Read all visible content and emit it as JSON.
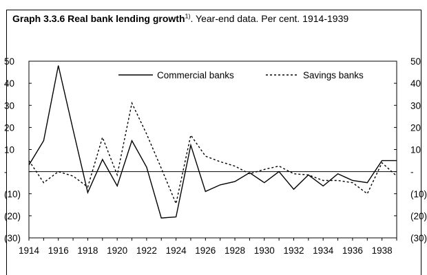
{
  "chart_data": {
    "type": "line",
    "title": "Graph 3.3.6 Real bank lending growth",
    "title_superscript": "1)",
    "subtitle": ". Year-end data. Per cent. 1914-1939",
    "x": [
      1914,
      1915,
      1916,
      1917,
      1918,
      1919,
      1920,
      1921,
      1922,
      1923,
      1924,
      1925,
      1926,
      1927,
      1928,
      1929,
      1930,
      1931,
      1932,
      1933,
      1934,
      1935,
      1936,
      1937,
      1938,
      1939
    ],
    "xtick_labels": [
      "1914",
      "1916",
      "1918",
      "1920",
      "1922",
      "1924",
      "1926",
      "1928",
      "1930",
      "1932",
      "1934",
      "1936",
      "1938"
    ],
    "ylim": [
      -30,
      50
    ],
    "yticks": [
      50,
      40,
      30,
      20,
      10,
      0,
      -10,
      -20,
      -30
    ],
    "ytick_labels": [
      "50",
      "40",
      "30",
      "20",
      "10",
      "-",
      "(10)",
      "(20)",
      "(30)"
    ],
    "legend_position": "top",
    "grid": false,
    "series": [
      {
        "name": "Commercial banks",
        "style": "solid",
        "color": "#000000",
        "values": [
          3,
          14,
          48,
          19,
          -9.5,
          5.5,
          -6.5,
          14,
          2,
          -21,
          -20.5,
          12,
          -9,
          -6,
          -4.5,
          -0.5,
          -5,
          0,
          -8,
          -1.5,
          -6.5,
          -1,
          -4,
          -5,
          5,
          5
        ]
      },
      {
        "name": "Savings banks",
        "style": "dashed",
        "color": "#000000",
        "values": [
          5,
          -5,
          0,
          -2,
          -7,
          15.5,
          -1.5,
          31,
          17,
          1.5,
          -14.5,
          16.5,
          7,
          4.5,
          2.5,
          -1,
          1,
          2.5,
          -1,
          -1.5,
          -4,
          -4,
          -5,
          -10,
          4,
          -2
        ]
      }
    ]
  }
}
